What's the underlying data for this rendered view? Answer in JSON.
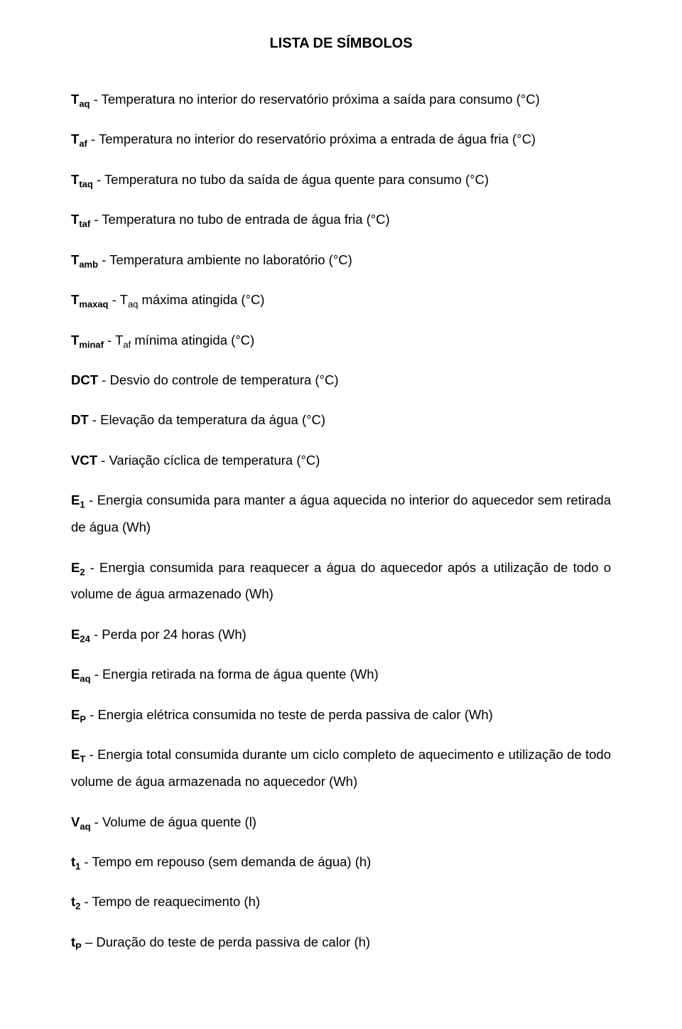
{
  "title": "LISTA DE SÍMBOLOS",
  "typography": {
    "title_fontsize": 20,
    "body_fontsize": 18.5,
    "sub_fontsize": 13,
    "line_height": 2.05,
    "font_family": "Arial",
    "text_color": "#000000",
    "background_color": "#ffffff"
  },
  "entries": [
    {
      "symbol_pre": "T",
      "symbol_sub": "aq",
      "desc": " - Temperatura no interior do reservatório próxima a saída para consumo (°C)"
    },
    {
      "symbol_pre": "T",
      "symbol_sub": "af",
      "desc": " - Temperatura no interior do reservatório próxima a entrada de água fria (°C)"
    },
    {
      "symbol_pre": "T",
      "symbol_sub": "taq",
      "desc": " - Temperatura no tubo da saída de água quente para consumo (°C)"
    },
    {
      "symbol_pre": "T",
      "symbol_sub": "taf",
      "desc": " - Temperatura no tubo de entrada de água fria (°C)"
    },
    {
      "symbol_pre": "T",
      "symbol_sub": "amb",
      "desc": " - Temperatura ambiente no laboratório (°C)"
    },
    {
      "symbol_pre": "T",
      "symbol_sub": "maxaq",
      "mid": " - T",
      "mid_sub": "aq",
      "desc": " máxima atingida (°C)"
    },
    {
      "symbol_pre": "T",
      "symbol_sub": "minaf",
      "mid": " - T",
      "mid_sub": "af",
      "desc": " mínima atingida (°C)"
    },
    {
      "symbol_pre": "DCT",
      "desc": " - Desvio do controle de temperatura (°C)"
    },
    {
      "symbol_pre": "DT",
      "desc": " - Elevação da temperatura da água (°C)"
    },
    {
      "symbol_pre": "VCT",
      "desc": " - Variação cíclica de temperatura (°C)"
    },
    {
      "symbol_pre": "E",
      "symbol_sub": "1",
      "desc": " - Energia consumida para manter a água aquecida no interior do aquecedor sem retirada de água (Wh)"
    },
    {
      "symbol_pre": "E",
      "symbol_sub": "2",
      "desc": " - Energia consumida para reaquecer a água do aquecedor após a utilização de todo o volume de água armazenado (Wh)"
    },
    {
      "symbol_pre": "E",
      "symbol_sub": "24",
      "desc": " - Perda por 24 horas (Wh)"
    },
    {
      "symbol_pre": "E",
      "symbol_sub": "aq",
      "desc": " - Energia retirada na forma de água quente (Wh)"
    },
    {
      "symbol_pre": "E",
      "symbol_sub": "P",
      "desc": " - Energia elétrica consumida no teste de perda passiva de calor (Wh)"
    },
    {
      "symbol_pre": "E",
      "symbol_sub": "T",
      "desc": " - Energia total consumida durante um ciclo completo de aquecimento e utilização de todo volume de água armazenada no aquecedor (Wh)"
    },
    {
      "symbol_pre": "V",
      "symbol_sub": "aq",
      "desc": " - Volume de água quente (l)"
    },
    {
      "symbol_pre": "t",
      "symbol_sub": "1",
      "desc": " - Tempo em repouso (sem demanda de água) (h)"
    },
    {
      "symbol_pre": "t",
      "symbol_sub": "2",
      "desc": " - Tempo de reaquecimento (h)"
    },
    {
      "symbol_pre": "t",
      "symbol_sub": "P",
      "desc": " – Duração do teste de perda passiva de calor (h)"
    }
  ]
}
